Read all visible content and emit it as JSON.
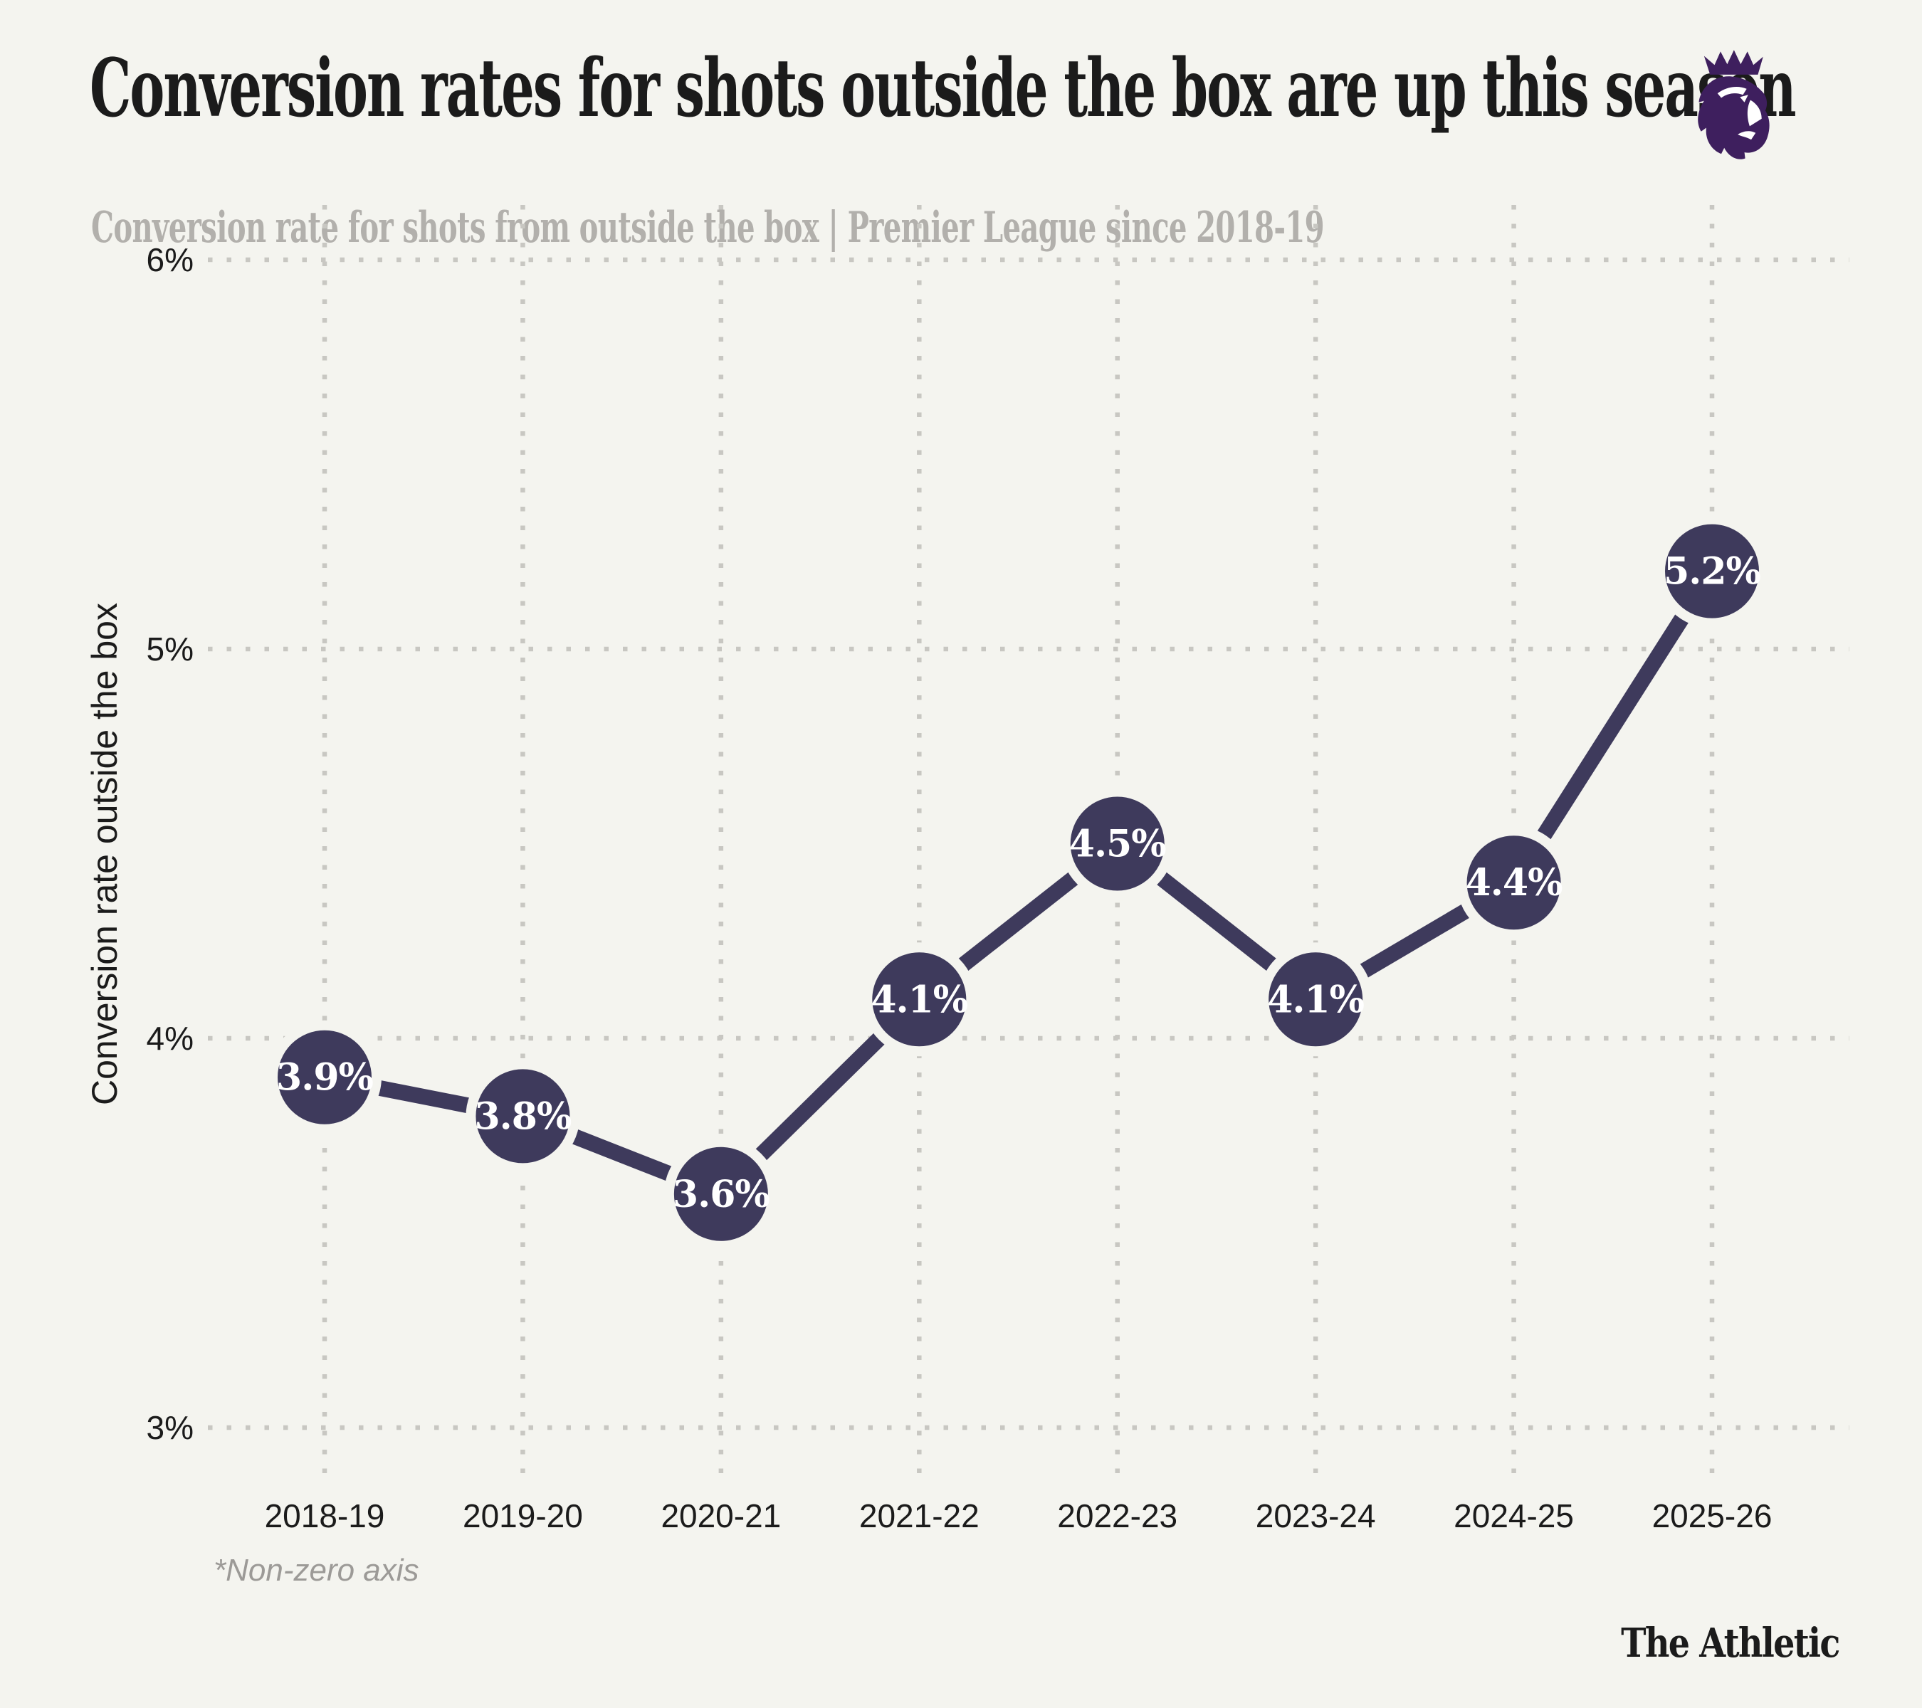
{
  "header": {
    "title": "Conversion rates for shots outside the box are up this season",
    "subtitle": "Conversion rate for shots from outside the box | Premier League since 2018-19"
  },
  "logo": {
    "name": "premier-league-lion-crest"
  },
  "chart_data": {
    "type": "line",
    "title": "Conversion rates for shots outside the box are up this season",
    "subtitle": "Conversion rate for shots from outside the box | Premier League since 2018-19",
    "categories": [
      "2018-19",
      "2019-20",
      "2020-21",
      "2021-22",
      "2022-23",
      "2023-24",
      "2024-25",
      "2025-26"
    ],
    "values": [
      3.9,
      3.8,
      3.6,
      4.1,
      4.5,
      4.1,
      4.4,
      5.2
    ],
    "point_labels": [
      "3.9%",
      "3.8%",
      "3.6%",
      "4.1%",
      "4.5%",
      "4.1%",
      "4.4%",
      "5.2%"
    ],
    "xlabel": "",
    "ylabel": "Conversion rate outside the box",
    "y_ticks": [
      6,
      5,
      4,
      3
    ],
    "y_tick_labels": [
      "6%",
      "5%",
      "4%",
      "3%"
    ],
    "ylim": [
      3,
      6
    ],
    "grid": "dotted-both-axes",
    "legend": "none",
    "non_zero_axis": true
  },
  "footnote": "*Non-zero axis",
  "brand": "The Athletic",
  "colors": {
    "background": "#f4f4ef",
    "ink": "#1b1b1b",
    "subtitle": "#b2b0ac",
    "grid": "#c8c7c2",
    "line": "#3e3a5c",
    "point_fill": "#3e3a5c",
    "point_text": "#ffffff",
    "footnote": "#9c9a97",
    "pl_purple": "#3e1f5e",
    "white": "#ffffff"
  }
}
